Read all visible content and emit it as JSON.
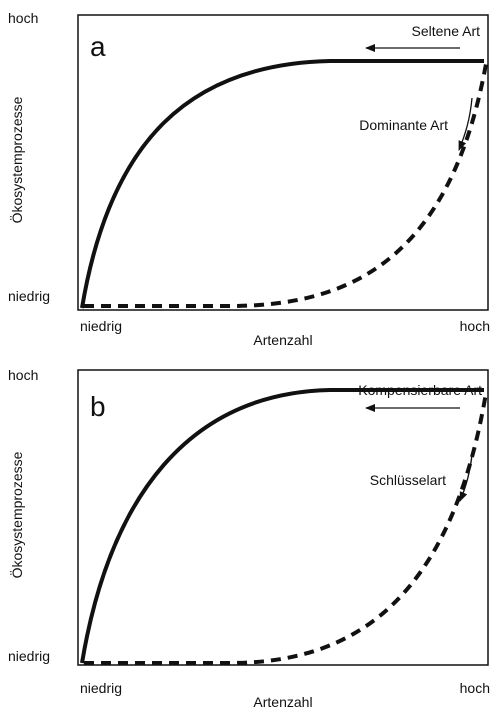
{
  "panels": [
    {
      "letter": "a",
      "y_axis": {
        "label": "Ökosystemprozesse",
        "high": "hoch",
        "low": "niedrig"
      },
      "x_axis": {
        "label": "Artenzahl",
        "low": "niedrig",
        "high": "hoch"
      },
      "solid_label": "Seltene Art",
      "dashed_label": "Dominante Art"
    },
    {
      "letter": "b",
      "y_axis": {
        "label": "Ökosystemprozesse",
        "high": "hoch",
        "low": "niedrig"
      },
      "x_axis": {
        "label": "Artenzahl",
        "low": "niedrig",
        "high": "hoch"
      },
      "solid_label": "Kompensierbare Art",
      "dashed_label": "Schlüsselart"
    }
  ]
}
